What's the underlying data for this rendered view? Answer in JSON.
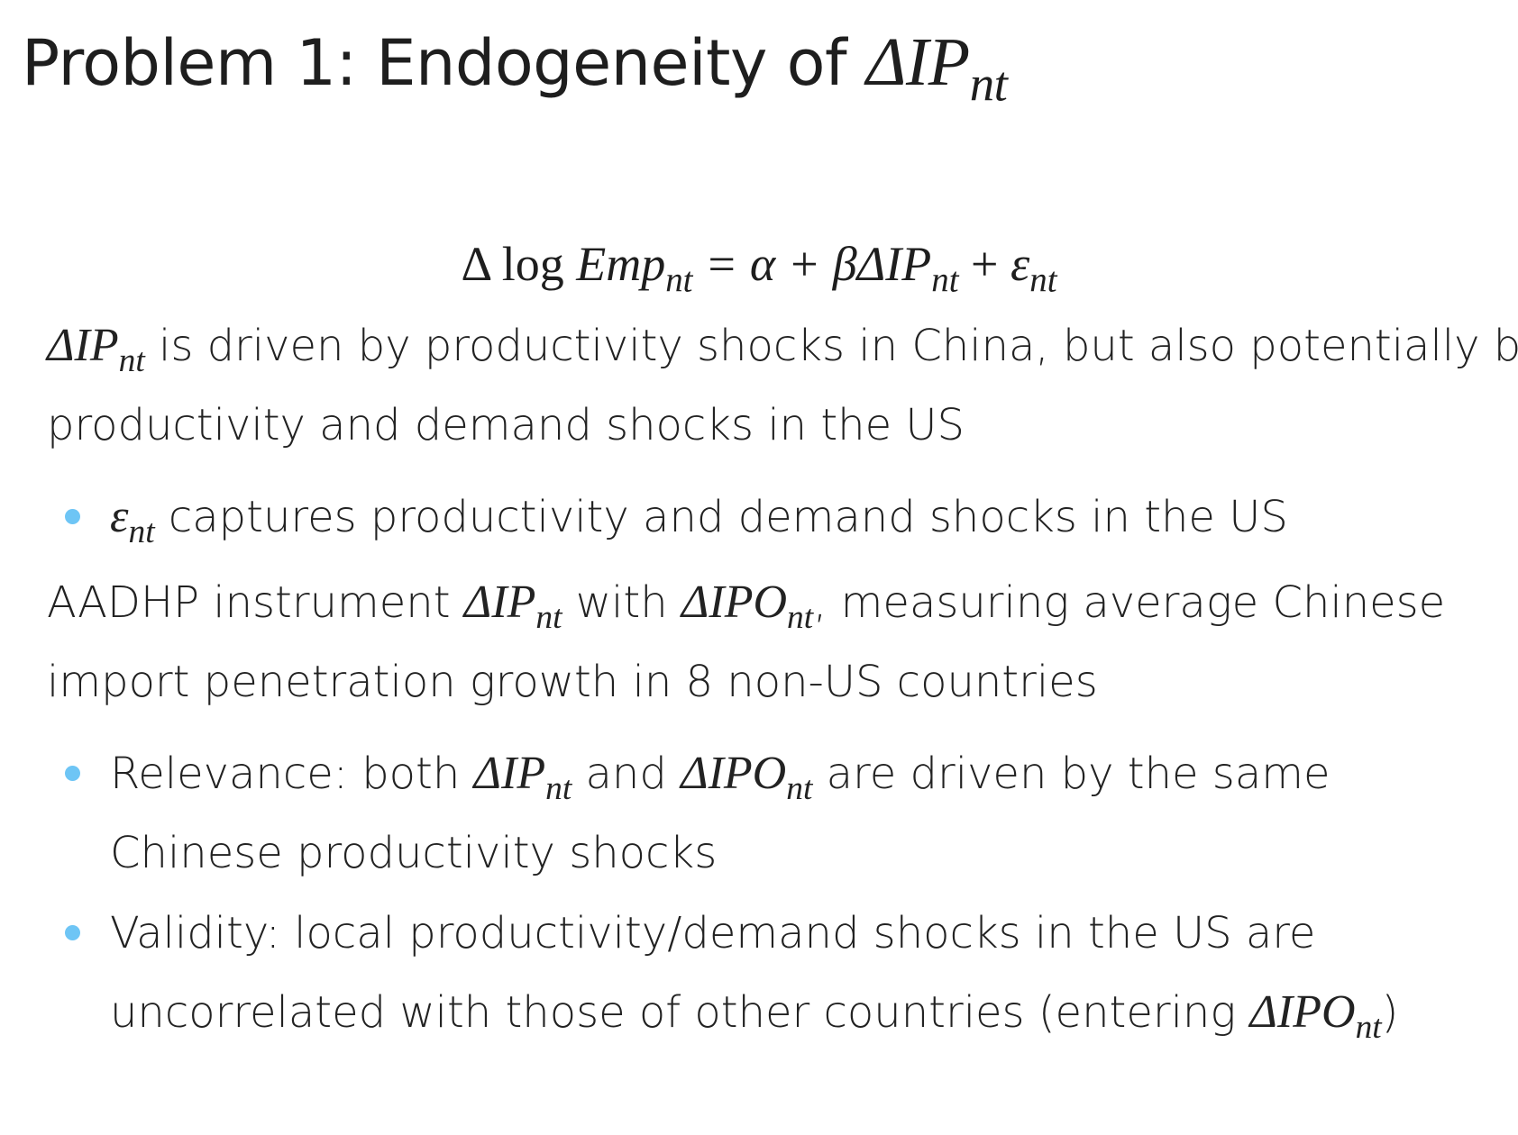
{
  "slide": {
    "title": {
      "text": "Problem 1: Endogeneity of ",
      "math": "ΔIP",
      "math_sub": "nt"
    },
    "equation": {
      "delta_log": "Δ log ",
      "emp": "Emp",
      "emp_sub": "nt",
      "eq_alpha": " = α + β",
      "delta_ip": "ΔIP",
      "ip_sub": "nt",
      "plus": " + ",
      "eps": "ε",
      "eps_sub": "nt"
    },
    "paragraph1": {
      "math": "ΔIP",
      "math_sub": "nt",
      "line1_rest": " is driven by productivity shocks in China, but also potentially by",
      "line2": "productivity and demand shocks in the US"
    },
    "bullet1": {
      "math": "ε",
      "math_sub": "nt",
      "rest": " captures productivity and demand shocks in the US"
    },
    "paragraph2": {
      "pre": "AADHP instrument ",
      "math1": "ΔIP",
      "math1_sub": "nt",
      "mid": " with ",
      "math2": "ΔIPO",
      "math2_sub": "nt",
      "post": ", measuring average Chinese",
      "line2": "import penetration growth in 8 non-US countries"
    },
    "bullet2": {
      "pre": "Relevance: both ",
      "math1": "ΔIP",
      "math1_sub": "nt",
      "mid": " and ",
      "math2": "ΔIPO",
      "math2_sub": "nt",
      "post": " are driven by the same",
      "line2": "Chinese productivity shocks"
    },
    "bullet3": {
      "line1": "Validity: local productivity/demand shocks in the US are",
      "line2_pre": "uncorrelated with those of other countries (entering ",
      "math": "ΔIPO",
      "math_sub": "nt",
      "line2_post": ")"
    },
    "colors": {
      "bullet": "#6ec5f5",
      "text": "#222222",
      "background": "#ffffff"
    }
  }
}
